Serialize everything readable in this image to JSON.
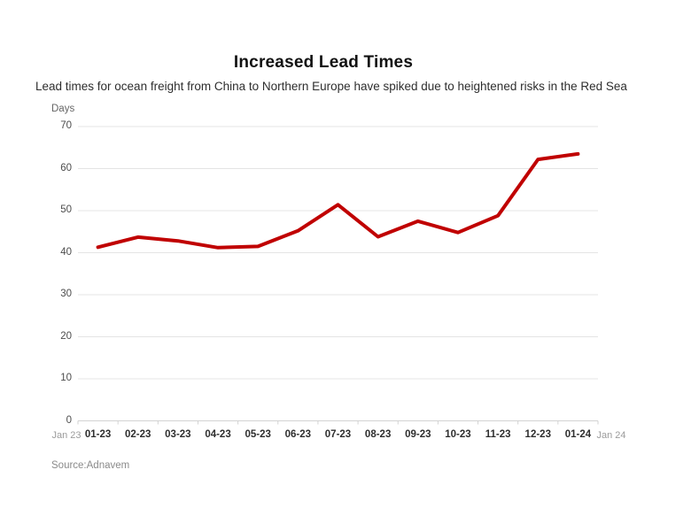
{
  "header": {
    "title": "Increased Lead Times",
    "subtitle": "Lead times for ocean freight from China to Northern Europe have spiked due to heightened risks in the Red Sea"
  },
  "chart_data": {
    "type": "line",
    "title": "Increased Lead Times",
    "subtitle": "Lead times for ocean freight from China to Northern Europe have spiked due to heightened risks in the Red Sea",
    "ylabel": "Days",
    "xlabel": "",
    "categories": [
      "01-23",
      "02-23",
      "03-23",
      "04-23",
      "05-23",
      "06-23",
      "07-23",
      "08-23",
      "09-23",
      "10-23",
      "11-23",
      "12-23",
      "01-24"
    ],
    "values": [
      41.3,
      43.7,
      42.8,
      41.2,
      41.5,
      45.2,
      51.4,
      43.8,
      47.5,
      44.8,
      48.8,
      62.2,
      63.5
    ],
    "ylim": [
      0,
      70
    ],
    "yticks": [
      70,
      60,
      50,
      40,
      30,
      20,
      10,
      0
    ],
    "x_edge_labels": [
      "Jan 23",
      "Jan 24"
    ],
    "grid": true,
    "legend_position": "none",
    "line_color": "#c00000"
  },
  "footer": {
    "source": "Source:Adnavem"
  },
  "colors": {
    "background": "#ffffff",
    "line": "#c00000",
    "grid": "#e4e4e4",
    "axis": "#d2d2d2",
    "title_text": "#111111",
    "subtitle_text": "#2e2e2e",
    "tick_text": "#4d4d4d",
    "category_text": "#2e2e2e",
    "muted_text": "#9b9b9b",
    "source_text": "#8a8a8a"
  }
}
